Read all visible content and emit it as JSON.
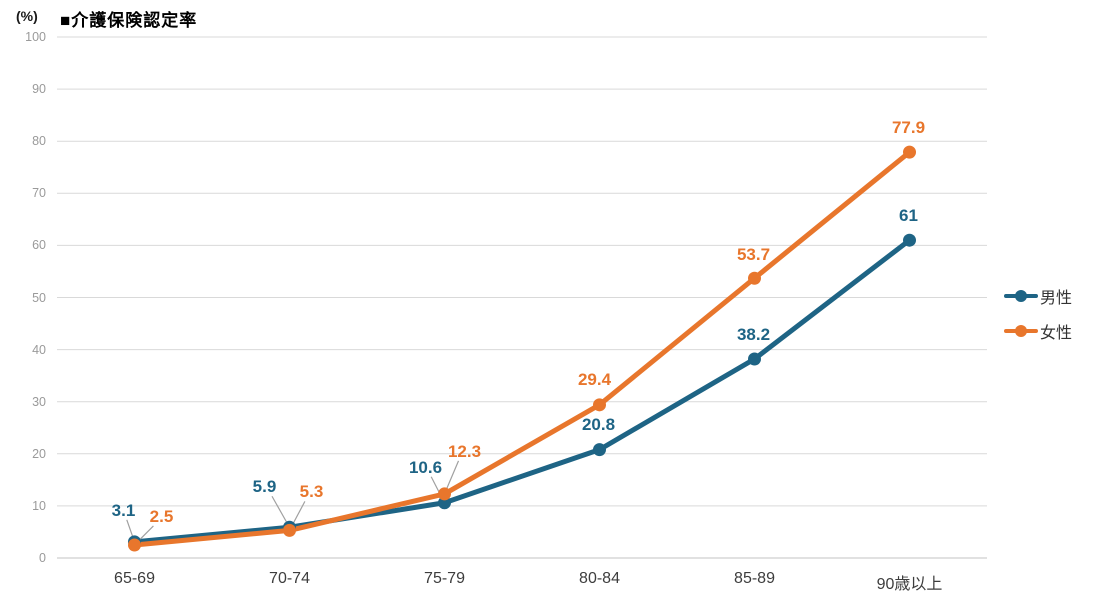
{
  "chart_data": {
    "type": "line",
    "title": "■介護保険認定率",
    "unit_label": "(%)",
    "categories": [
      "65-69",
      "70-74",
      "75-79",
      "80-84",
      "85-89",
      "90歳以上"
    ],
    "series": [
      {
        "name": "男性",
        "color": "#1e6485",
        "values": [
          3.1,
          5.9,
          10.6,
          20.8,
          38.2,
          61
        ],
        "labels": [
          "3.1",
          "5.9",
          "10.6",
          "20.8",
          "38.2",
          "61"
        ]
      },
      {
        "name": "女性",
        "color": "#e8762c",
        "values": [
          2.5,
          5.3,
          12.3,
          29.4,
          53.7,
          77.9
        ],
        "labels": [
          "2.5",
          "5.3",
          "12.3",
          "29.4",
          "53.7",
          "77.9"
        ]
      }
    ],
    "ylim": [
      0,
      100
    ],
    "ytick_step": 10,
    "grid": true,
    "legend_position": "right",
    "grid_color": "#d9d9d9",
    "axis_color": "#c3c3c3",
    "leader_color": "#a0a0a0"
  }
}
